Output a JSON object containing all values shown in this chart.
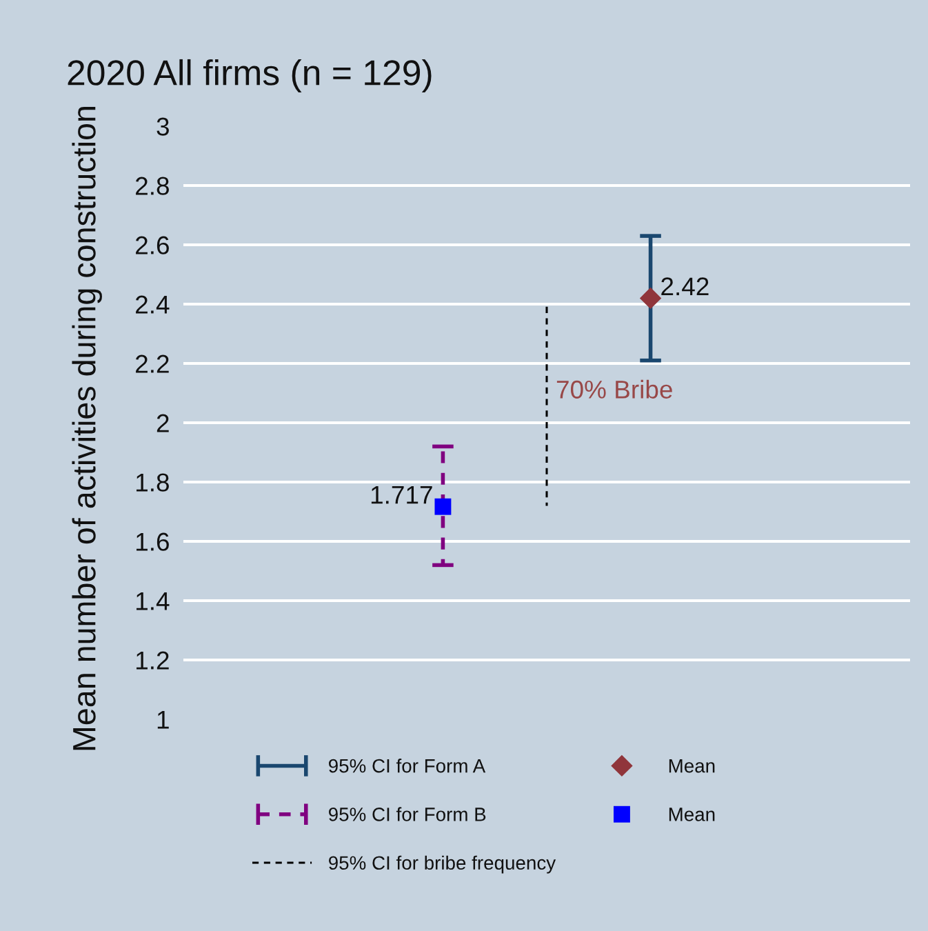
{
  "chart_data": {
    "type": "scatter",
    "title": "2020 All firms (n = 129)",
    "ylabel": "Mean number of activities during construction",
    "categories": [
      null,
      null,
      null,
      null,
      null,
      null,
      null
    ],
    "series": [
      {
        "name": "95% CI for Form A",
        "type": "bar",
        "color": "#1a476f",
        "line_style": "solid",
        "base": [
          null,
          null,
          null,
          null,
          2.21,
          null,
          null
        ],
        "values": [
          null,
          null,
          null,
          null,
          0.42,
          null,
          null
        ]
      },
      {
        "name": "95% CI for Form B",
        "type": "bar",
        "color": "#800080",
        "line_style": "dashed",
        "base": [
          null,
          null,
          1.52,
          null,
          null,
          null,
          null
        ],
        "values": [
          null,
          null,
          0.4,
          null,
          null,
          null,
          null
        ]
      },
      {
        "name": "95% CI for bribe frequency",
        "type": "bar",
        "color": "#000000",
        "line_style": "dashed",
        "marker": "none",
        "base": [
          null,
          null,
          null,
          1.72,
          null,
          null,
          null
        ],
        "values": [
          null,
          null,
          null,
          0.68,
          null,
          null,
          null
        ]
      },
      {
        "name": "Mean",
        "color": "#90353b",
        "marker": "diamond",
        "values": [
          null,
          null,
          null,
          null,
          2.42,
          null,
          null
        ],
        "value_labels": [
          null,
          null,
          null,
          null,
          "2.42",
          null,
          null
        ]
      },
      {
        "name": "Mean",
        "color": "#0000ff",
        "marker": "square",
        "values": [
          null,
          null,
          1.717,
          null,
          null,
          null,
          null
        ],
        "value_labels": [
          null,
          null,
          "1.717",
          null,
          null,
          null,
          null
        ]
      }
    ],
    "ylim": [
      1,
      3
    ],
    "yticks": [
      1,
      1.2,
      1.4,
      1.6,
      1.8,
      2,
      2.2,
      2.4,
      2.6,
      2.8,
      3
    ],
    "tick_labels": "y",
    "grid": "y",
    "legend": "bottom",
    "annotations": [
      "70% Bribe"
    ]
  }
}
